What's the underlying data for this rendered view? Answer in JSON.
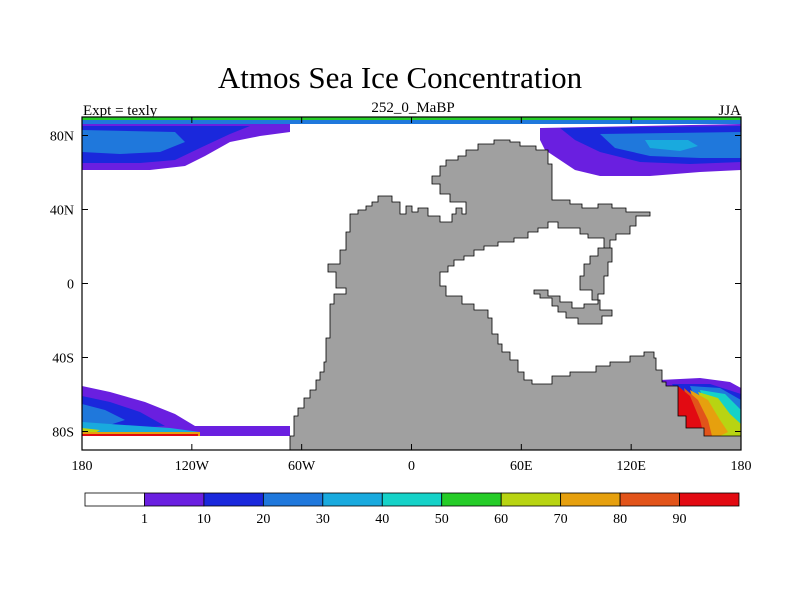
{
  "title": "Atmos Sea Ice Concentration",
  "subtitle_left": "Expt = texly",
  "subtitle_center": "252_0_MaBP",
  "subtitle_right": "JJA",
  "map": {
    "lon_range": [
      -180,
      180
    ],
    "lat_range": [
      -90,
      90
    ],
    "lon_ticks": [
      {
        "value": -180,
        "label": "180"
      },
      {
        "value": -120,
        "label": "120W"
      },
      {
        "value": -60,
        "label": "60W"
      },
      {
        "value": 0,
        "label": "0"
      },
      {
        "value": 60,
        "label": "60E"
      },
      {
        "value": 120,
        "label": "120E"
      },
      {
        "value": 180,
        "label": "180"
      }
    ],
    "lat_ticks": [
      {
        "value": 80,
        "label": "80N"
      },
      {
        "value": 40,
        "label": "40N"
      },
      {
        "value": 0,
        "label": "0"
      },
      {
        "value": -40,
        "label": "40S"
      },
      {
        "value": -80,
        "label": "80S"
      }
    ]
  },
  "colorbar": {
    "levels": [
      1,
      10,
      20,
      30,
      40,
      50,
      60,
      70,
      80,
      90
    ],
    "labels": [
      "1",
      "10",
      "20",
      "30",
      "40",
      "50",
      "60",
      "70",
      "80",
      "90"
    ],
    "colors": [
      "#ffffff",
      "#6a1fe0",
      "#1a28dc",
      "#1f78dc",
      "#19aade",
      "#15d2c8",
      "#26cc28",
      "#b8d412",
      "#e6a00e",
      "#e2541a",
      "#e20a12"
    ]
  },
  "land_color": "#a0a0a0"
}
